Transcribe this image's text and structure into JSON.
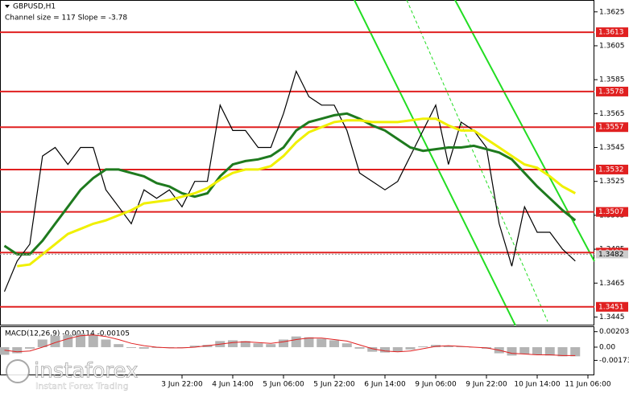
{
  "chart_data": [
    {
      "type": "line",
      "title": "GBPUSD,H1",
      "subtitle": "Channel size = 117 Slope = -3.78",
      "categories": [
        null,
        null,
        null,
        null,
        null,
        null,
        null,
        null,
        null,
        null,
        null,
        null,
        null,
        null,
        "3 Jun 22:00",
        null,
        null,
        null,
        "4 Jun 14:00",
        null,
        null,
        null,
        "5 Jun 06:00",
        null,
        null,
        null,
        "5 Jun 22:00",
        null,
        null,
        null,
        "6 Jun 14:00",
        null,
        null,
        null,
        "9 Jun 06:00",
        null,
        null,
        null,
        "9 Jun 22:00",
        null,
        null,
        null,
        "10 Jun 14:00",
        null,
        null,
        null,
        "11 Jun 06:00"
      ],
      "series": [
        {
          "color": "#000000",
          "values": [
            1.346,
            1.3478,
            1.3488,
            1.354,
            1.3545,
            1.3535,
            1.3545,
            1.3545,
            1.352,
            1.351,
            1.35,
            1.352,
            1.3515,
            1.352,
            1.351,
            1.3525,
            1.3525,
            1.357,
            1.3555,
            1.3555,
            1.3545,
            1.3545,
            1.3565,
            1.359,
            1.3575,
            1.357,
            1.357,
            1.3555,
            1.353,
            1.3525,
            1.352,
            1.3525,
            1.354,
            1.3555,
            1.357,
            1.3535,
            1.356,
            1.3555,
            1.3545,
            1.35,
            1.3475,
            1.351,
            1.3495,
            1.3495,
            1.3485,
            1.3478,
            null
          ]
        },
        {
          "color": "#1e7a1e",
          "values": [
            1.3487,
            1.3482,
            1.3482,
            1.349,
            1.35,
            1.351,
            1.352,
            1.3527,
            1.3532,
            1.3532,
            1.353,
            1.3528,
            1.3524,
            1.3522,
            1.3518,
            1.3516,
            1.3518,
            1.3528,
            1.3535,
            1.3537,
            1.3538,
            1.354,
            1.3545,
            1.3555,
            1.356,
            1.3562,
            1.3564,
            1.3565,
            1.3562,
            1.3558,
            1.3555,
            1.355,
            1.3545,
            1.3543,
            1.3544,
            1.3545,
            1.3545,
            1.3546,
            1.3544,
            1.3542,
            1.3538,
            1.353,
            1.3522,
            1.3515,
            1.3508,
            1.3502,
            null
          ]
        },
        {
          "color": "#f0f000",
          "values": [
            null,
            1.3475,
            1.3476,
            1.3482,
            1.3488,
            1.3494,
            1.3497,
            1.35,
            1.3502,
            1.3505,
            1.3508,
            1.3512,
            1.3513,
            1.3514,
            1.3516,
            1.3518,
            1.3521,
            1.3526,
            1.353,
            1.3532,
            1.3532,
            1.3534,
            1.354,
            1.3548,
            1.3554,
            1.3557,
            1.356,
            1.3561,
            1.3561,
            1.356,
            1.356,
            1.356,
            1.3561,
            1.3562,
            1.3562,
            1.3558,
            1.3555,
            1.3555,
            1.355,
            1.3545,
            1.354,
            1.3535,
            1.3533,
            1.3528,
            1.3522,
            1.3518,
            null
          ]
        }
      ],
      "levels": [
        1.3613,
        1.3578,
        1.3557,
        1.3532,
        1.3507,
        1.3483,
        1.3451
      ],
      "level_color": "#e02020",
      "last_price": 1.3482,
      "ylim": [
        1.344,
        1.3632
      ],
      "yticks": [
        1.3625,
        1.3605,
        1.3585,
        1.3565,
        1.3545,
        1.3525,
        1.3505,
        1.3485,
        1.3465,
        1.3445
      ]
    },
    {
      "type": "macd",
      "title": "MACD(12,26,9) -0.00114 -0.00105",
      "histogram": {
        "color": "#b4b4b4",
        "values": [
          -0.001,
          -0.0008,
          -0.0002,
          0.001,
          0.0015,
          0.0016,
          0.0018,
          0.0016,
          0.001,
          0.0004,
          -0.0001,
          -0.0002,
          -0.0001,
          -0.0001,
          0.0,
          0.0002,
          0.0003,
          0.0008,
          0.0009,
          0.0008,
          0.0005,
          0.0004,
          0.001,
          0.0014,
          0.0013,
          0.0011,
          0.0009,
          0.0005,
          -0.0002,
          -0.0006,
          -0.0007,
          -0.0006,
          -0.0003,
          0.0001,
          0.0003,
          0.0002,
          0.0001,
          0.0,
          -0.0002,
          -0.0008,
          -0.0011,
          -0.0009,
          -0.001,
          -0.0011,
          -0.0012,
          -0.0012,
          null
        ]
      },
      "signal": {
        "color": "#e02020",
        "values": [
          -0.0004,
          -0.0006,
          -0.0005,
          0.0,
          0.0006,
          0.0011,
          0.0015,
          0.0016,
          0.0014,
          0.001,
          0.0005,
          0.0002,
          0.0,
          -0.0001,
          -0.0001,
          0.0,
          0.0002,
          0.0004,
          0.0006,
          0.0007,
          0.0006,
          0.0005,
          0.0007,
          0.001,
          0.0012,
          0.0012,
          0.001,
          0.0008,
          0.0003,
          -0.0002,
          -0.0005,
          -0.0006,
          -0.0005,
          -0.0002,
          0.0001,
          0.0002,
          0.0001,
          0.0,
          -0.0001,
          -0.0004,
          -0.0008,
          -0.0009,
          -0.001,
          -0.001,
          -0.0011,
          -0.0011,
          null
        ]
      },
      "ylim": [
        -0.00369,
        0.00263
      ],
      "yticks": [
        0.00203,
        {
          "value": 0,
          "label": "0.00"
        },
        -0.00173
      ]
    }
  ],
  "logo": {
    "name": "instaforex",
    "tagline": "Instant Forex Trading"
  }
}
